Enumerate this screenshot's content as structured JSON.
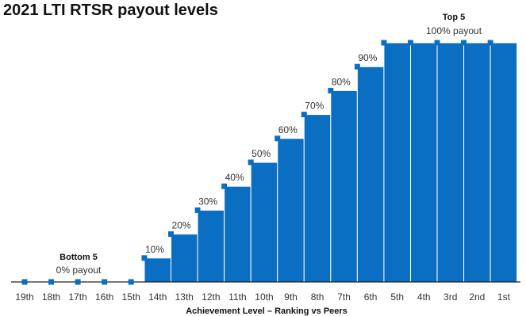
{
  "chart_data": {
    "type": "bar",
    "title": "2021 LTI RTSR payout levels",
    "xlabel": "Achievement Level – Ranking vs Peers",
    "ylabel": "",
    "ylim": [
      0,
      100
    ],
    "grid": false,
    "categories": [
      "19th",
      "18th",
      "17th",
      "16th",
      "15th",
      "14th",
      "13th",
      "12th",
      "11th",
      "10th",
      "9th",
      "8th",
      "7th",
      "6th",
      "5th",
      "4th",
      "3rd",
      "2nd",
      "1st"
    ],
    "values": [
      0,
      0,
      0,
      0,
      0,
      10,
      20,
      30,
      40,
      50,
      60,
      70,
      80,
      90,
      100,
      100,
      100,
      100,
      100
    ],
    "data_labels": [
      "",
      "",
      "",
      "",
      "",
      "10%",
      "20%",
      "30%",
      "40%",
      "50%",
      "60%",
      "70%",
      "80%",
      "90%",
      "",
      "",
      "",
      "",
      ""
    ],
    "annotations": [
      {
        "title": "Bottom 5",
        "subtitle": "0% payout"
      },
      {
        "title": "Top 5",
        "subtitle": "100% payout"
      }
    ],
    "colors": {
      "bar": "#0a6fc2",
      "marker": "#0a6fc2",
      "baseline": "#222222"
    }
  }
}
